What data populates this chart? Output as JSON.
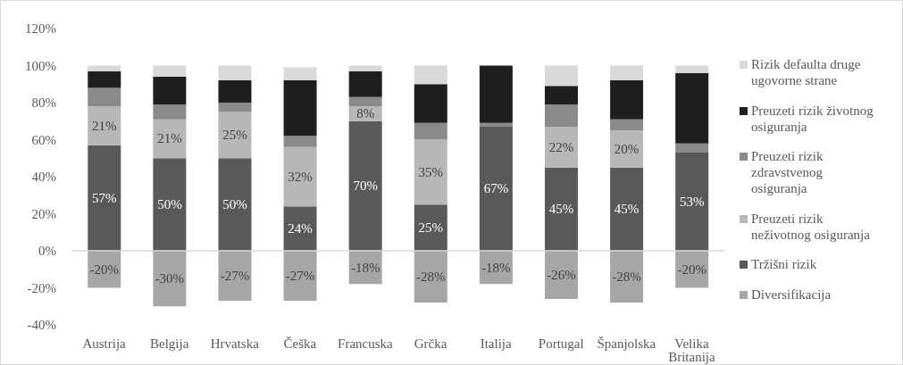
{
  "chart_data": {
    "type": "bar",
    "stacked": true,
    "categories": [
      "Austrija",
      "Belgija",
      "Hrvatska",
      "Češka",
      "Francuska",
      "Grčka",
      "Italija",
      "Portugal",
      "Španjolska",
      "Velika Britanija"
    ],
    "series": [
      {
        "name": "Diversifikacija",
        "color": "#a6a6a6",
        "values": [
          -20,
          -30,
          -27,
          -27,
          -18,
          -28,
          -18,
          -26,
          -28,
          -20
        ],
        "value_labels": [
          "-20%",
          "-30%",
          "-27%",
          "-27%",
          "-18%",
          "-28%",
          "-18%",
          "-26%",
          "-28%",
          "-20%"
        ]
      },
      {
        "name": "Tržišni rizik",
        "color": "#595959",
        "values": [
          57,
          50,
          50,
          24,
          70,
          25,
          67,
          45,
          45,
          53
        ],
        "value_labels": [
          "57%",
          "50%",
          "50%",
          "24%",
          "70%",
          "25%",
          "67%",
          "45%",
          "45%",
          "53%"
        ]
      },
      {
        "name": "Preuzeti rizik neživotnog osiguranja",
        "color": "#b7b7b7",
        "values": [
          21,
          21,
          25,
          32,
          8,
          35,
          0,
          22,
          20,
          0
        ],
        "value_labels": [
          "21%",
          "21%",
          "25%",
          "32%",
          "8%",
          "35%",
          null,
          "22%",
          "20%",
          null
        ]
      },
      {
        "name": "Preuzeti rizik zdravstvenog osiguranja",
        "color": "#8a8a8a",
        "values": [
          10,
          8,
          5,
          6,
          5,
          9,
          2,
          12,
          6,
          5
        ]
      },
      {
        "name": "Preuzeti rizik životnog osiguranja",
        "color": "#1f1f1f",
        "values": [
          9,
          15,
          12,
          30,
          14,
          21,
          31,
          10,
          21,
          38
        ]
      },
      {
        "name": "Rizik defaulta druge ugovorne strane",
        "color": "#d9d9d9",
        "values": [
          3,
          6,
          8,
          7,
          3,
          10,
          0,
          11,
          8,
          4
        ]
      }
    ],
    "ylim": [
      -40,
      120
    ],
    "yticks": [
      {
        "value": -40,
        "label": "-40%"
      },
      {
        "value": -20,
        "label": "-20%"
      },
      {
        "value": 0,
        "label": "0%"
      },
      {
        "value": 20,
        "label": "20%"
      },
      {
        "value": 40,
        "label": "40%"
      },
      {
        "value": 60,
        "label": "60%"
      },
      {
        "value": 80,
        "label": "80%"
      },
      {
        "value": 100,
        "label": "100%"
      },
      {
        "value": 120,
        "label": "120%"
      }
    ],
    "ref_lines": [
      {
        "axis": "y",
        "value": 0,
        "color": "#d9d9d9"
      }
    ],
    "grid": false,
    "legend": "right"
  }
}
